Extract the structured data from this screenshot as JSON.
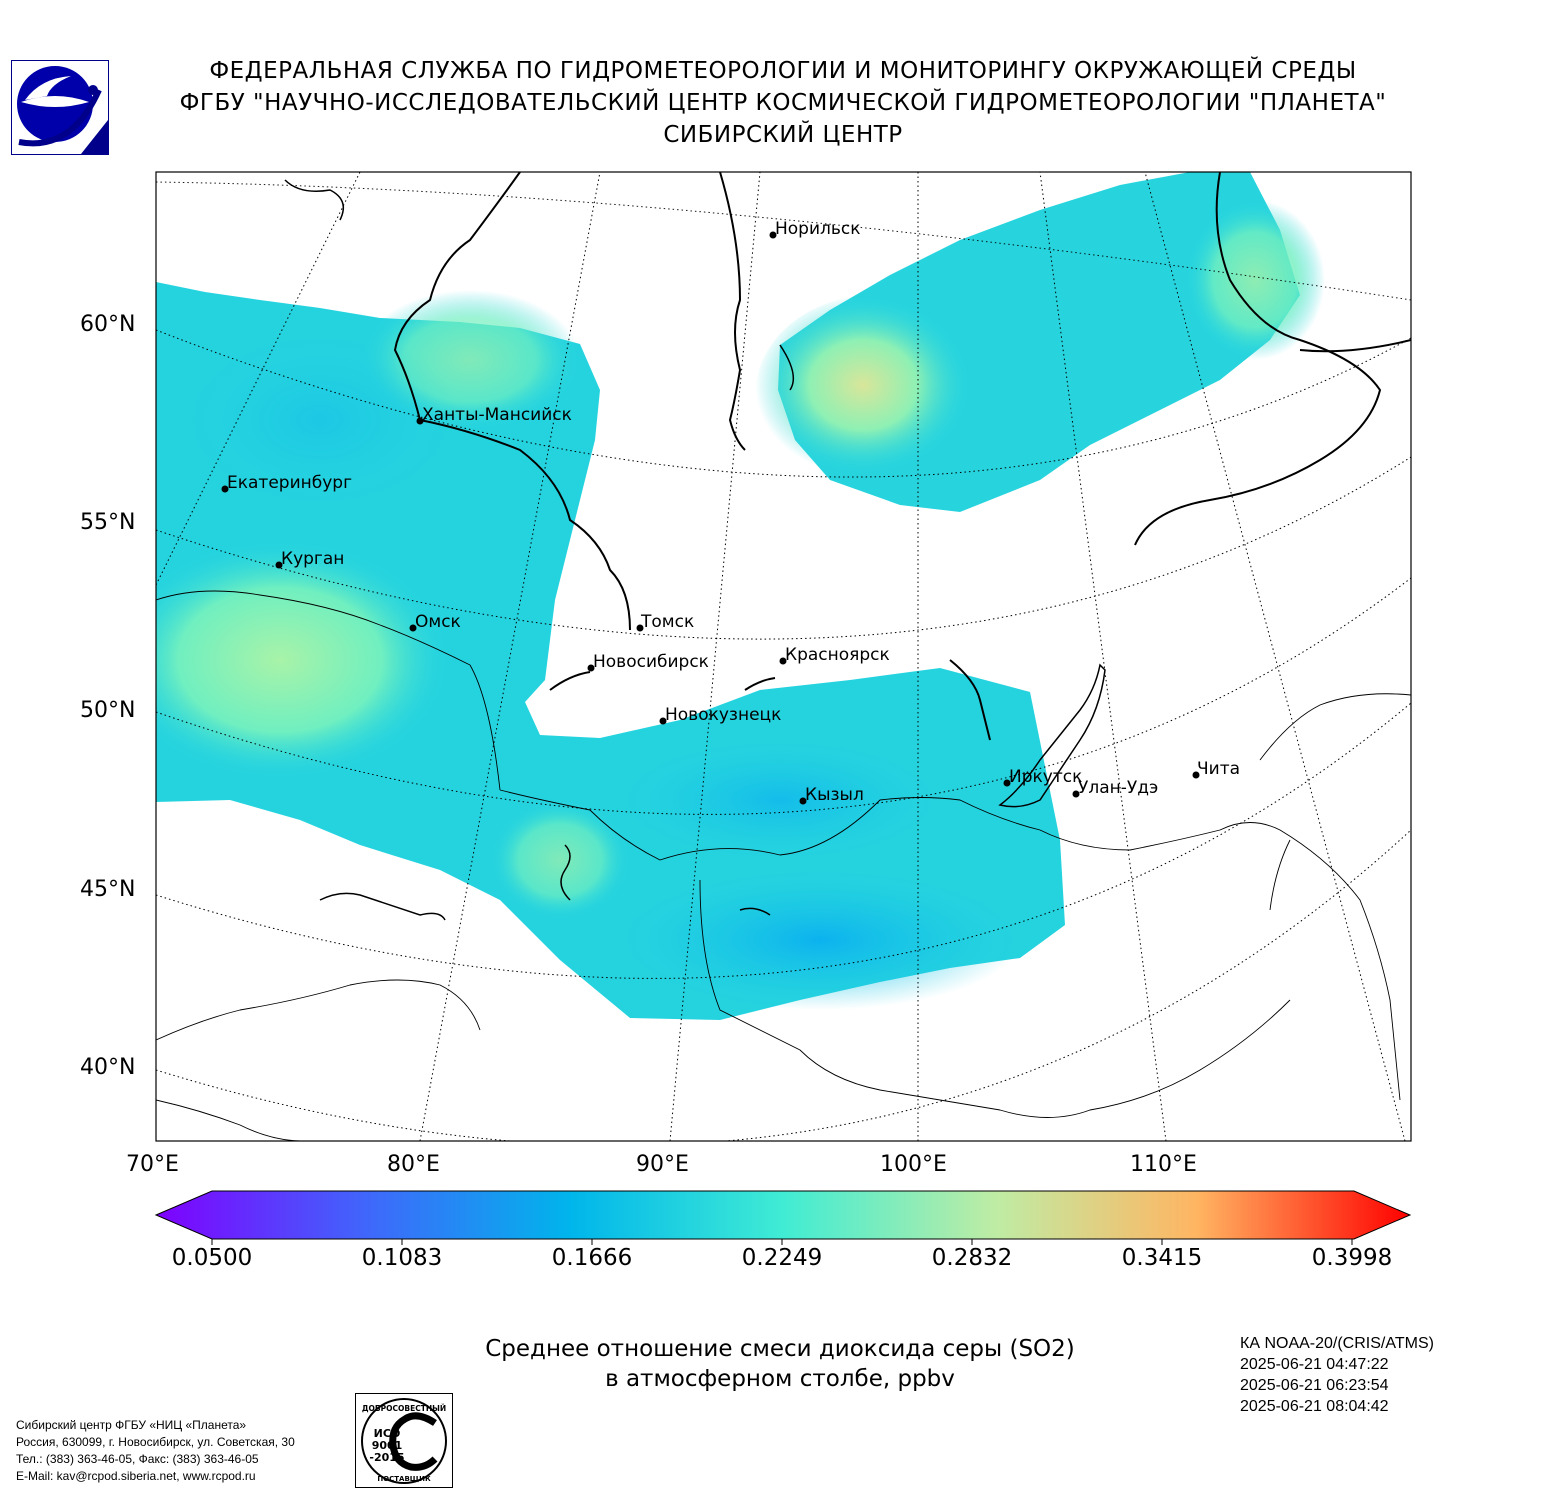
{
  "header": {
    "line1": "ФЕДЕРАЛЬНАЯ СЛУЖБА ПО ГИДРОМЕТЕОРОЛОГИИ И МОНИТОРИНГУ ОКРУЖАЮЩЕЙ СРЕДЫ",
    "line2": "ФГБУ \"НАУЧНО-ИССЛЕДОВАТЕЛЬСКИЙ ЦЕНТР КОСМИЧЕСКОЙ ГИДРОМЕТЕОРОЛОГИИ \"ПЛАНЕТА\"",
    "line3": "СИБИРСКИЙ ЦЕНТР"
  },
  "logo": {
    "icon": "planeta-logo-icon",
    "color": "#00008b"
  },
  "map": {
    "lat_labels": [
      "60°N",
      "55°N",
      "50°N",
      "45°N",
      "40°N"
    ],
    "lon_labels": [
      "70°E",
      "80°E",
      "90°E",
      "100°E",
      "110°E"
    ],
    "cities": [
      {
        "name": "Норильск"
      },
      {
        "name": "Ханты-Мансийск"
      },
      {
        "name": "Екатеринбург"
      },
      {
        "name": "Курган"
      },
      {
        "name": "Омск"
      },
      {
        "name": "Томск"
      },
      {
        "name": "Новосибирск"
      },
      {
        "name": "Красноярск"
      },
      {
        "name": "Новокузнецк"
      },
      {
        "name": "Кызыл"
      },
      {
        "name": "Иркутск"
      },
      {
        "name": "Улан-Удэ"
      },
      {
        "name": "Чита"
      }
    ]
  },
  "colorbar": {
    "ticks": [
      "0.0500",
      "0.1083",
      "0.1666",
      "0.2249",
      "0.2832",
      "0.3415",
      "0.3998"
    ],
    "colors": [
      "#7f00ff",
      "#3f68fb",
      "#00b5eb",
      "#40ecd4",
      "#bfeca4",
      "#ffb562",
      "#ff0000"
    ]
  },
  "title": {
    "line1": "Среднее отношение смеси диоксида серы (SO2)",
    "line2": "в атмосферном столбе, ppbv"
  },
  "satellite": {
    "name": "КА NOAA-20/(CRIS/ATMS)",
    "times": [
      "2025-06-21 04:47:22",
      "2025-06-21 06:23:54",
      "2025-06-21 08:04:42"
    ]
  },
  "address": {
    "line1": "Сибирский центр ФГБУ «НИЦ «Планета»",
    "line2": "Россия, 630099, г. Новосибирск, ул. Советская, 30",
    "line3": "Тел.: (383) 363-46-05, Факс: (383) 363-46-05",
    "line4": "E-Mail: kav@rcpod.siberia.net, www.rcpod.ru"
  },
  "iso_stamp": {
    "icon": "iso-certificate-icon",
    "top": "ДОБРОСОВЕСТНЫЙ",
    "mid1": "ИСО",
    "mid2": "9001",
    "mid3": "-2015",
    "bottom": "ПОСТАВЩИК"
  }
}
